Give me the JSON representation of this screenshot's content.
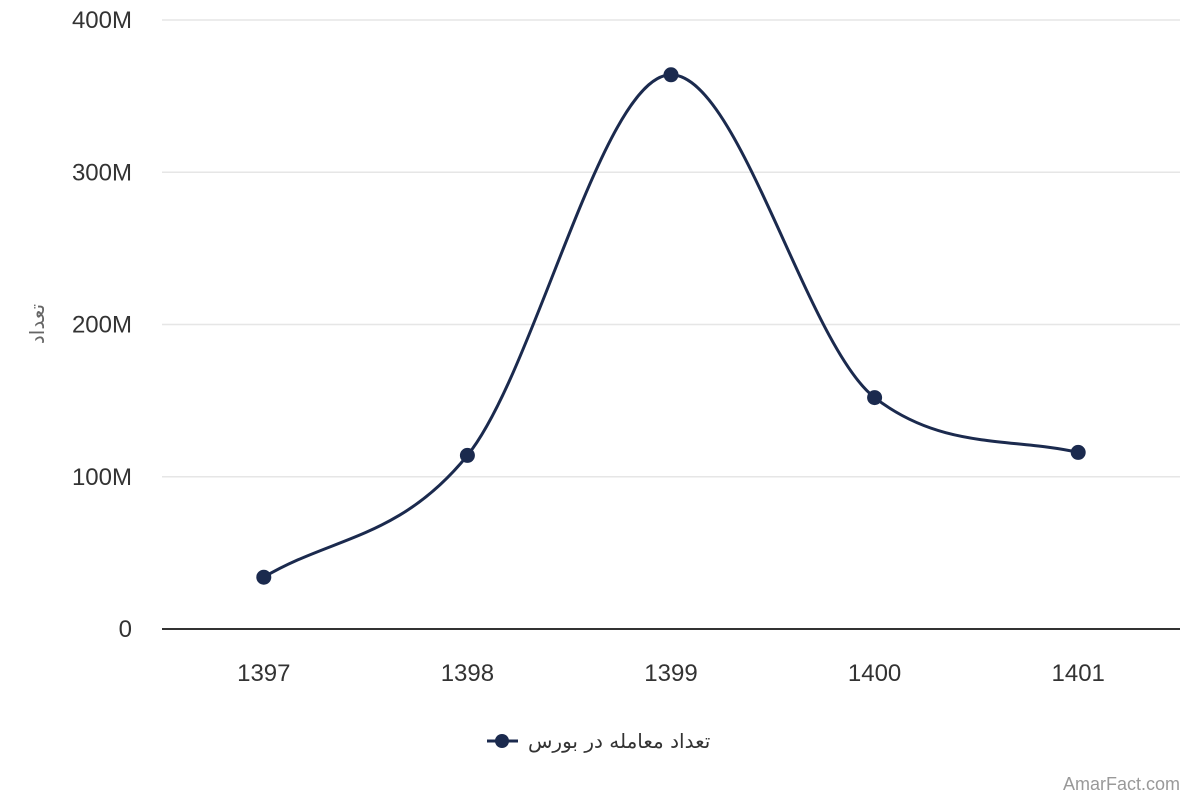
{
  "chart_data": {
    "type": "line",
    "smooth": true,
    "x": [
      "1397",
      "1398",
      "1399",
      "1400",
      "1401"
    ],
    "series": [
      {
        "name": "تعداد معامله در بورس",
        "values": [
          34000000,
          114000000,
          364000000,
          152000000,
          116000000
        ],
        "color": "#1b2a4e"
      }
    ],
    "ylabel": "تعداد",
    "xlabel": "",
    "ylim": [
      0,
      400000000
    ],
    "yticks": [
      0,
      100000000,
      200000000,
      300000000,
      400000000
    ],
    "ytick_labels": [
      "0",
      "100M",
      "200M",
      "300M",
      "400M"
    ],
    "grid": true,
    "legend": "bottom-center"
  },
  "credit": "AmarFact.com",
  "colors": {
    "series": "#1b2a4e",
    "grid": "#e6e6e6",
    "axis": "#333333",
    "text": "#333333",
    "credit": "#999999"
  }
}
